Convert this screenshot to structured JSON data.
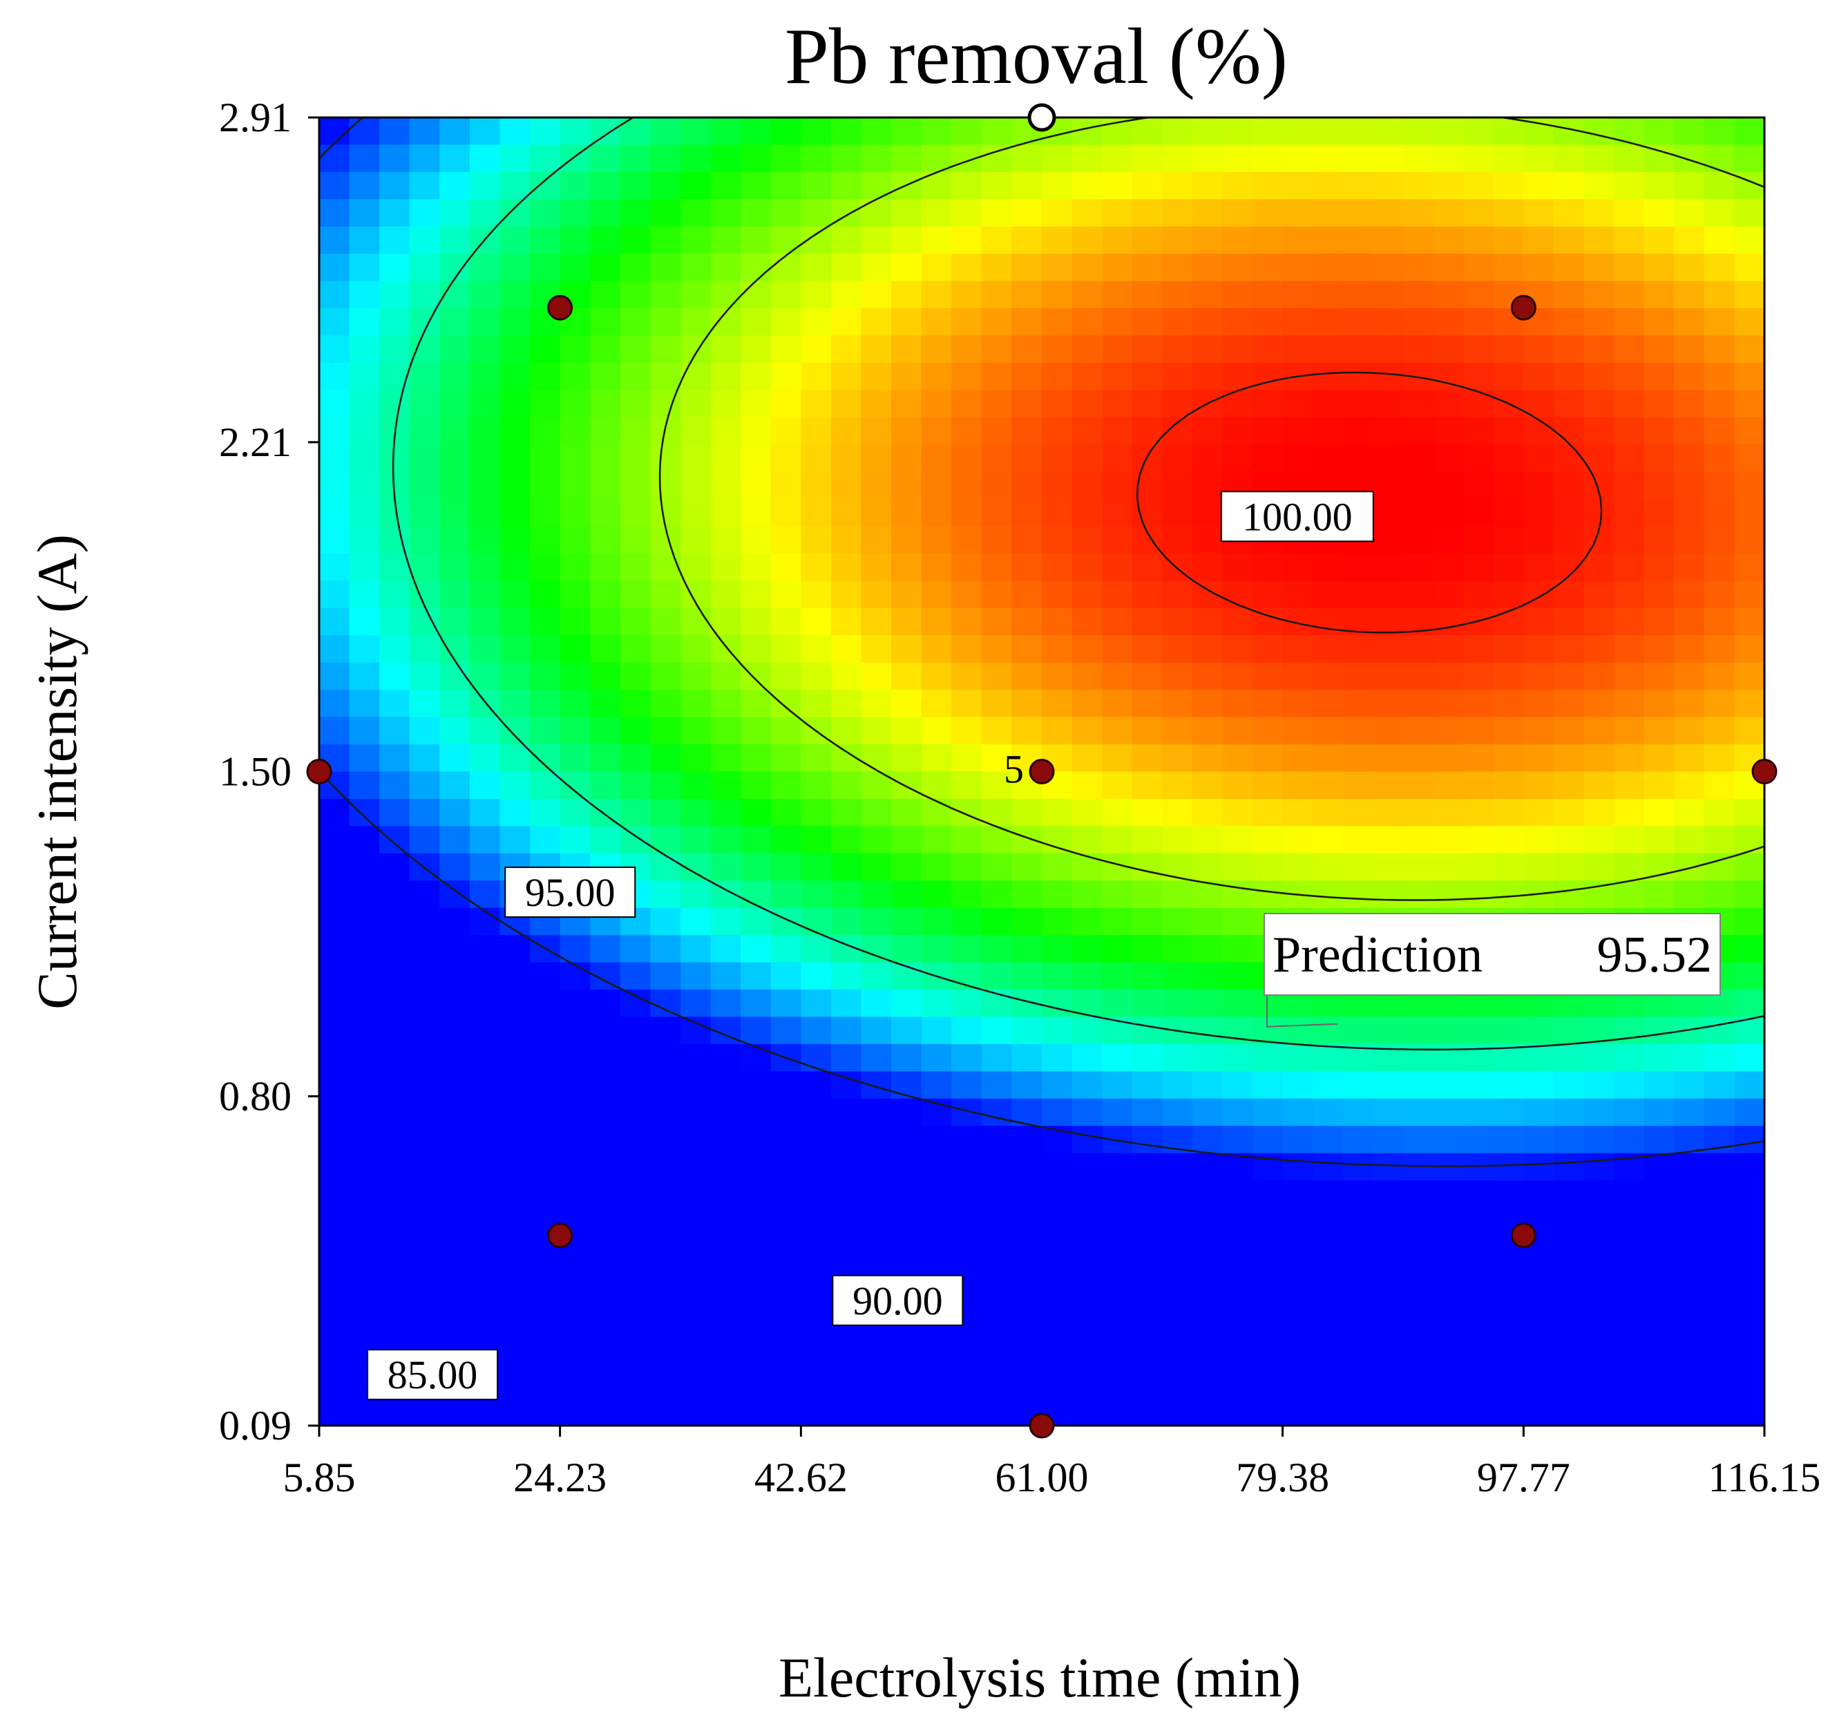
{
  "chart_data": {
    "type": "contour",
    "title": "Pb removal (%)",
    "xlabel": "Electrolysis time (min)",
    "ylabel": "Current intensity (A)",
    "xlim": [
      5.85,
      116.15
    ],
    "ylim": [
      0.09,
      2.91
    ],
    "x_ticks": [
      "5.85",
      "24.23",
      "42.62",
      "61.00",
      "79.38",
      "97.77",
      "116.15"
    ],
    "y_ticks": [
      "0.09",
      "0.80",
      "1.50",
      "2.21",
      "2.91"
    ],
    "color_scale": [
      "#0000ff",
      "#00ffff",
      "#00ff00",
      "#ffff00",
      "#ff0000"
    ],
    "contour_levels": [
      {
        "value": 85.0,
        "label": "85.00"
      },
      {
        "value": 90.0,
        "label": "90.00"
      },
      {
        "value": 95.0,
        "label": "95.00"
      },
      {
        "value": 100.0,
        "label": "100.00"
      }
    ],
    "design_points": [
      {
        "x": 24.23,
        "y": 2.5
      },
      {
        "x": 97.77,
        "y": 2.5
      },
      {
        "x": 5.85,
        "y": 1.5
      },
      {
        "x": 61.0,
        "y": 1.5,
        "label": "5"
      },
      {
        "x": 116.15,
        "y": 1.5
      },
      {
        "x": 24.23,
        "y": 0.5
      },
      {
        "x": 97.77,
        "y": 0.5
      },
      {
        "x": 61.0,
        "y": 0.09
      }
    ],
    "selected_point": {
      "x": 61.0,
      "y": 2.91
    },
    "prediction": {
      "label": "Prediction",
      "value": "95.52",
      "x": 84.0,
      "y": 0.95
    }
  }
}
